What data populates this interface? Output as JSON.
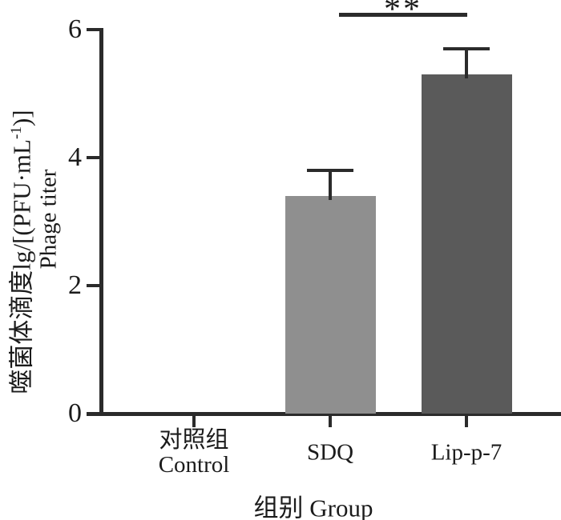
{
  "figure": {
    "y_axis": {
      "label_cn_prefix": "噬菌体滴度lg/[(PFU·mL",
      "label_cn_sup": "-1",
      "label_cn_suffix": ")]",
      "label_en": "Phage titer",
      "tick_labels": [
        "0",
        "2",
        "4",
        "6"
      ]
    },
    "x_axis": {
      "title": "组别 Group"
    },
    "significance": {
      "label": "**"
    }
  },
  "chart_data": {
    "type": "bar",
    "title": "",
    "xlabel": "组别 Group",
    "ylabel": "噬菌体滴度lg/[(PFU·mL⁻¹)] Phage titer",
    "categories": [
      "对照组 Control",
      "SDQ",
      "Lip-p-7"
    ],
    "category_label_lines": [
      [
        "对照组",
        "Control"
      ],
      [
        "SDQ"
      ],
      [
        "Lip-p-7"
      ]
    ],
    "series": [
      {
        "name": "Phage titer lg(PFU/mL)",
        "values": [
          0,
          3.4,
          5.3
        ]
      }
    ],
    "errors_plus": [
      0,
      0.4,
      0.4
    ],
    "bar_colors": [
      null,
      "#8f8f8f",
      "#5a5a5a"
    ],
    "ylim": [
      0,
      6
    ],
    "yticks": [
      0,
      2,
      4,
      6
    ],
    "grid": false,
    "legend": "none",
    "annotations": [
      {
        "type": "significance-bracket",
        "label": "**",
        "from": "SDQ",
        "to": "Lip-p-7"
      }
    ]
  },
  "colors": {
    "axis": "#2b2b2b",
    "text": "#1b1b1b",
    "bar_sdq": "#8f8f8f",
    "bar_lip_p_7": "#5a5a5a",
    "background": "#ffffff"
  }
}
